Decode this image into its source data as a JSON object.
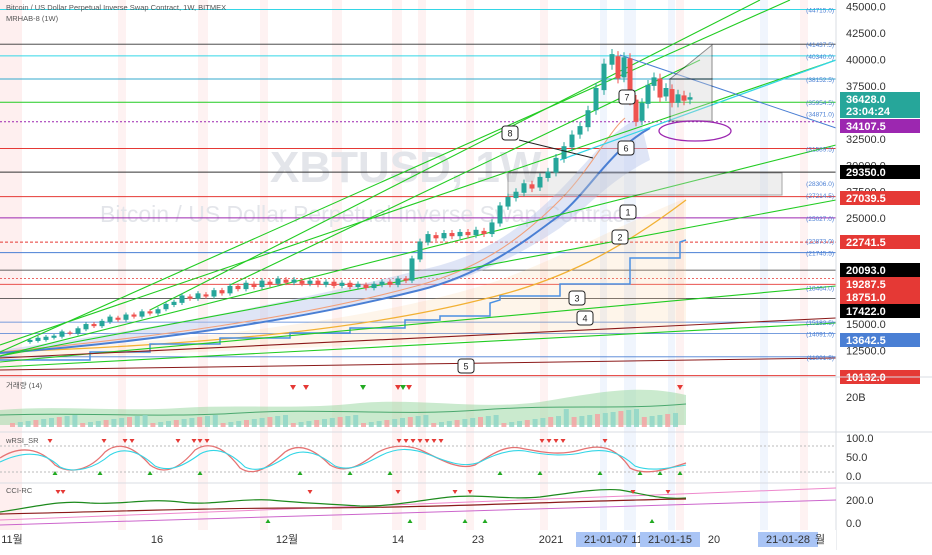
{
  "header": {
    "line1": "Bitcoin / US Dollar Perpetual Inverse Swap Contract, 1W, BITMEX",
    "line2": "MRHAB-8 (1W)"
  },
  "watermark": {
    "symbol": "XBTUSD, 1W",
    "description": "Bitcoin / US Dollar Perpetual Inverse Swap Contract"
  },
  "colors": {
    "up": "#26a69a",
    "down": "#ef5350",
    "trend_green": "#22cc22",
    "trend_blue": "#4a7fd4",
    "cyan": "#33d6e6",
    "red_line": "#e53935",
    "gold": "#f2b134",
    "purple": "#8a2be2",
    "dark_red": "#8b1a1a"
  },
  "panes": {
    "volume_label": "거래량 (14)",
    "rsi_label": "wRSI_SR",
    "cci_label": "CCI-RC"
  },
  "chart_data": [
    {
      "type": "candlestick",
      "title": "Bitcoin / US Dollar Perpetual Inverse Swap Contract, 1W, BITMEX",
      "symbol": "XBTUSD",
      "timeframe": "1W",
      "x": [
        "2020-10-26",
        "2020-11-02",
        "2020-11-09",
        "2020-11-16",
        "2020-11-23",
        "2020-11-30",
        "2020-12-07",
        "2020-12-14",
        "2020-12-21",
        "2020-12-28",
        "2021-01-04",
        "2021-01-11",
        "2021-01-18"
      ],
      "ohlc": [
        [
          13200,
          14000,
          12800,
          13800
        ],
        [
          13800,
          15900,
          13600,
          15700
        ],
        [
          15700,
          16500,
          15200,
          16300
        ],
        [
          16300,
          18900,
          16200,
          18700
        ],
        [
          18700,
          19500,
          16300,
          18200
        ],
        [
          18200,
          19900,
          18100,
          19300
        ],
        [
          19300,
          19500,
          17600,
          19000
        ],
        [
          19000,
          24300,
          19000,
          23800
        ],
        [
          23800,
          28400,
          21900,
          26500
        ],
        [
          26500,
          34800,
          26300,
          33000
        ],
        [
          33000,
          42000,
          28000,
          38500
        ],
        [
          38500,
          40500,
          30400,
          36100
        ],
        [
          36100,
          37600,
          34800,
          36428
        ]
      ],
      "y_axis_ticks": [
        45000.0,
        42500.0,
        40000.0,
        37500.0,
        35000.0,
        32500.0,
        30000.0,
        27500.0,
        25000.0,
        22500.0,
        20000.0,
        17500.0,
        15000.0,
        12500.0
      ],
      "ylim": [
        9800,
        45800
      ],
      "price_tags": [
        {
          "value": "36428.0",
          "color": "#26a69a"
        },
        {
          "value": "23:04:24",
          "color": "#26a69a"
        },
        {
          "value": "34107.5",
          "color": "#9c27b0"
        },
        {
          "value": "29350.0",
          "color": "#000000"
        },
        {
          "value": "27039.5",
          "color": "#e53935"
        },
        {
          "value": "22741.5",
          "color": "#e53935"
        },
        {
          "value": "20093.0",
          "color": "#000000"
        },
        {
          "value": "19287.5",
          "color": "#e53935"
        },
        {
          "value": "18751.0",
          "color": "#e53935"
        },
        {
          "value": "17422.0",
          "color": "#000000"
        },
        {
          "value": "13642.5",
          "color": "#4a7fd4"
        },
        {
          "value": "10132.0",
          "color": "#e53935"
        }
      ],
      "level_labels": [
        {
          "value": 44715.0,
          "label": "(44715.0)"
        },
        {
          "value": 41437.5,
          "label": "(41437.5)"
        },
        {
          "value": 40340.0,
          "label": "(40340.0)"
        },
        {
          "value": 38152.5,
          "label": "(38152.5)"
        },
        {
          "value": 35954.5,
          "label": "(35954.5)"
        },
        {
          "value": 34871.0,
          "label": "(34871.0)"
        },
        {
          "value": 31589.5,
          "label": "(31589.5)"
        },
        {
          "value": 28306.0,
          "label": "(28306.0)"
        },
        {
          "value": 27214.5,
          "label": "(27214.5)"
        },
        {
          "value": 25027.0,
          "label": "(25027.0)"
        },
        {
          "value": 22873.0,
          "label": "(22873.0)"
        },
        {
          "value": 21745.5,
          "label": "(21745.5)"
        },
        {
          "value": 18464.0,
          "label": "(18464.0)"
        },
        {
          "value": 15182.5,
          "label": "(15182.5)"
        },
        {
          "value": 14091.0,
          "label": "(14091.0)"
        },
        {
          "value": 11901.5,
          "label": "(11901.5)"
        }
      ],
      "annotations": [
        "1",
        "2",
        "3",
        "4",
        "5",
        "6",
        "7",
        "8"
      ]
    },
    {
      "type": "bar",
      "name": "거래량 (14)",
      "y_axis_ticks": [
        "20B"
      ]
    },
    {
      "type": "line",
      "name": "wRSI_SR",
      "y_axis_ticks": [
        100.0,
        50.0,
        0.0
      ]
    },
    {
      "type": "line",
      "name": "CCI-RC",
      "y_axis_ticks": [
        200.0,
        0.0
      ]
    }
  ],
  "x_axis_labels": [
    {
      "text": "11월",
      "highlight": false
    },
    {
      "text": "16",
      "highlight": false
    },
    {
      "text": "12월",
      "highlight": false
    },
    {
      "text": "14",
      "highlight": false
    },
    {
      "text": "23",
      "highlight": false
    },
    {
      "text": "2021",
      "highlight": false
    },
    {
      "text": "21-01-07",
      "highlight": true
    },
    {
      "text": "11",
      "highlight": false
    },
    {
      "text": "21-01-15",
      "highlight": true
    },
    {
      "text": "20",
      "highlight": false
    },
    {
      "text": "21-01-28",
      "highlight": true
    },
    {
      "text": "월",
      "highlight": false
    }
  ]
}
